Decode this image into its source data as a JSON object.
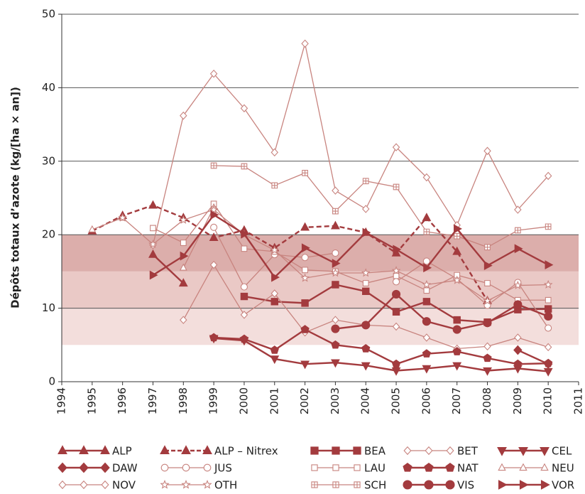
{
  "chart_data": {
    "type": "line",
    "y_label": "Dépôts totaux d’azote (kg/[ha × an])",
    "x": [
      1995,
      1996,
      1997,
      1998,
      1999,
      2000,
      2001,
      2002,
      2003,
      2004,
      2005,
      2006,
      2007,
      2008,
      2009,
      2010
    ],
    "xlim": [
      1994,
      2011
    ],
    "xticks": [
      1994,
      1995,
      1996,
      1997,
      1998,
      1999,
      2000,
      2001,
      2002,
      2003,
      2004,
      2005,
      2006,
      2007,
      2008,
      2009,
      2010,
      2011
    ],
    "ylim": [
      0,
      50
    ],
    "yticks": [
      0,
      10,
      20,
      30,
      40,
      50
    ],
    "grid": true,
    "bands": [
      {
        "from": 15,
        "to": 20,
        "color": "#dcaeab"
      },
      {
        "from": 10,
        "to": 15,
        "color": "#eac9c6"
      },
      {
        "from": 5,
        "to": 10,
        "color": "#f3dedc"
      }
    ],
    "series": [
      {
        "name": "ALP",
        "color": "#a33b3e",
        "marker": "triangle",
        "filled": true,
        "dashed": false,
        "values": [
          null,
          null,
          17.3,
          13.4,
          null,
          null,
          null,
          null,
          null,
          null,
          null,
          null,
          null,
          null,
          null,
          null
        ]
      },
      {
        "name": "ALP – Nitrex",
        "color": "#a33b3e",
        "marker": "triangle",
        "filled": true,
        "dashed": true,
        "values": [
          20.5,
          22.6,
          24,
          22.3,
          19.6,
          20.6,
          18.2,
          21,
          21.2,
          20.3,
          17.5,
          22.3,
          17.7,
          11,
          null,
          null
        ]
      },
      {
        "name": "BEA",
        "color": "#a33b3e",
        "marker": "square",
        "filled": true,
        "dashed": false,
        "values": [
          null,
          null,
          null,
          null,
          null,
          11.6,
          10.9,
          10.7,
          13.2,
          12.3,
          9.5,
          10.9,
          8.4,
          8.1,
          9.8,
          9.9
        ]
      },
      {
        "name": "BET",
        "color": "#c8847f",
        "marker": "diamond",
        "filled": false,
        "dashed": false,
        "values": [
          null,
          null,
          null,
          8.4,
          15.9,
          9.1,
          12,
          6.7,
          8.4,
          7.7,
          7.5,
          6,
          4.5,
          4.8,
          6,
          4.7
        ]
      },
      {
        "name": "CEL",
        "color": "#a33b3e",
        "marker": "triangle-down",
        "filled": true,
        "dashed": false,
        "values": [
          null,
          null,
          null,
          null,
          5.9,
          5.6,
          3.1,
          2.4,
          2.6,
          2.2,
          1.5,
          1.8,
          2.2,
          1.5,
          1.8,
          1.4
        ]
      },
      {
        "name": "DAW",
        "color": "#a33b3e",
        "marker": "diamond",
        "filled": true,
        "dashed": false,
        "values": [
          null,
          null,
          null,
          null,
          null,
          null,
          null,
          null,
          null,
          null,
          null,
          null,
          null,
          null,
          4.3,
          2.4
        ]
      },
      {
        "name": "JUS",
        "color": "#c8847f",
        "marker": "circle",
        "filled": false,
        "dashed": false,
        "values": [
          null,
          null,
          null,
          null,
          21,
          12.9,
          17.3,
          16.9,
          17.5,
          null,
          13.6,
          16.4,
          14,
          10.4,
          13.5,
          7.3
        ]
      },
      {
        "name": "LAU",
        "color": "#c8847f",
        "marker": "square",
        "filled": false,
        "dashed": false,
        "values": [
          null,
          null,
          20.9,
          18.9,
          24.2,
          18.1,
          17.7,
          15.2,
          15,
          13.4,
          14.4,
          12.4,
          14.5,
          13.4,
          11.1,
          11.1
        ]
      },
      {
        "name": "NAT",
        "color": "#a33b3e",
        "marker": "pentagon",
        "filled": true,
        "dashed": false,
        "values": [
          null,
          null,
          null,
          null,
          6,
          5.8,
          4.3,
          7.1,
          5,
          4.5,
          2.4,
          3.8,
          4.1,
          3.2,
          2.4,
          2.5
        ]
      },
      {
        "name": "NEU",
        "color": "#c8847f",
        "marker": "triangle",
        "filled": false,
        "dashed": false,
        "values": [
          20.7,
          22.3,
          null,
          15.5,
          23.7,
          null,
          null,
          null,
          null,
          null,
          null,
          null,
          null,
          null,
          null,
          null
        ]
      },
      {
        "name": "NOV",
        "color": "#c8847f",
        "marker": "diamond",
        "filled": false,
        "dashed": false,
        "values": [
          null,
          null,
          18.6,
          36.2,
          41.9,
          37.2,
          31.2,
          46,
          26,
          23.5,
          31.9,
          27.8,
          21.3,
          31.4,
          23.4,
          28
        ]
      },
      {
        "name": "OTH",
        "color": "#c8847f",
        "marker": "star",
        "filled": false,
        "dashed": false,
        "values": [
          null,
          22.3,
          18.7,
          22,
          23.4,
          20,
          17.9,
          14.1,
          14.8,
          14.8,
          15.1,
          13.2,
          13.8,
          11,
          13.1,
          13.2
        ]
      },
      {
        "name": "SCH",
        "color": "#c8847f",
        "marker": "square-plus",
        "filled": false,
        "dashed": false,
        "values": [
          null,
          null,
          null,
          null,
          29.4,
          29.3,
          26.7,
          28.4,
          23.2,
          27.3,
          26.5,
          20.4,
          19.8,
          18.3,
          20.6,
          21.1
        ]
      },
      {
        "name": "VIS",
        "color": "#a33b3e",
        "marker": "circle",
        "filled": true,
        "dashed": false,
        "values": [
          null,
          null,
          null,
          null,
          null,
          null,
          null,
          null,
          7.2,
          7.7,
          11.9,
          8.2,
          7.1,
          8,
          10.5,
          8.9
        ]
      },
      {
        "name": "VOR",
        "color": "#a33b3e",
        "marker": "triangle-right",
        "filled": true,
        "dashed": false,
        "values": [
          null,
          null,
          14.5,
          17.1,
          22.7,
          20.1,
          14.2,
          18.2,
          16.1,
          20.3,
          18,
          15.5,
          20.8,
          15.8,
          18.1,
          15.9
        ]
      }
    ]
  }
}
